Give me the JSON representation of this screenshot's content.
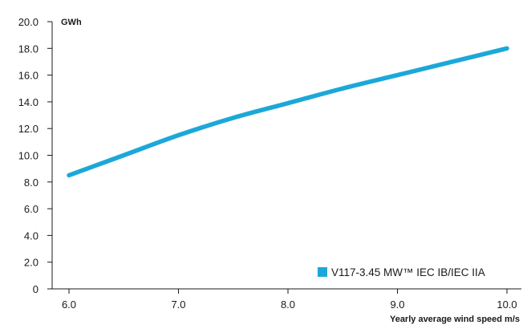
{
  "chart_data": {
    "type": "line",
    "ylabel": "GWh",
    "xlabel": "Yearly average wind speed m/s",
    "xlim": [
      6.0,
      10.0
    ],
    "ylim": [
      0,
      20.0
    ],
    "x_ticks": [
      "6.0",
      "7.0",
      "8.0",
      "9.0",
      "10.0"
    ],
    "y_ticks": [
      "0",
      "2.0",
      "4.0",
      "6.0",
      "8.0",
      "10.0",
      "12.0",
      "14.0",
      "16.0",
      "18.0",
      "20.0"
    ],
    "grid": false,
    "legend_position": "bottom-right",
    "series": [
      {
        "name": "V117-3.45 MW™ IEC IB/IEC IIA",
        "color": "#1ba8d8",
        "x": [
          6.0,
          6.5,
          7.0,
          7.5,
          8.0,
          8.5,
          9.0,
          9.5,
          10.0
        ],
        "y": [
          8.5,
          10.0,
          11.5,
          12.8,
          13.9,
          15.0,
          16.0,
          17.0,
          18.0
        ]
      }
    ]
  }
}
